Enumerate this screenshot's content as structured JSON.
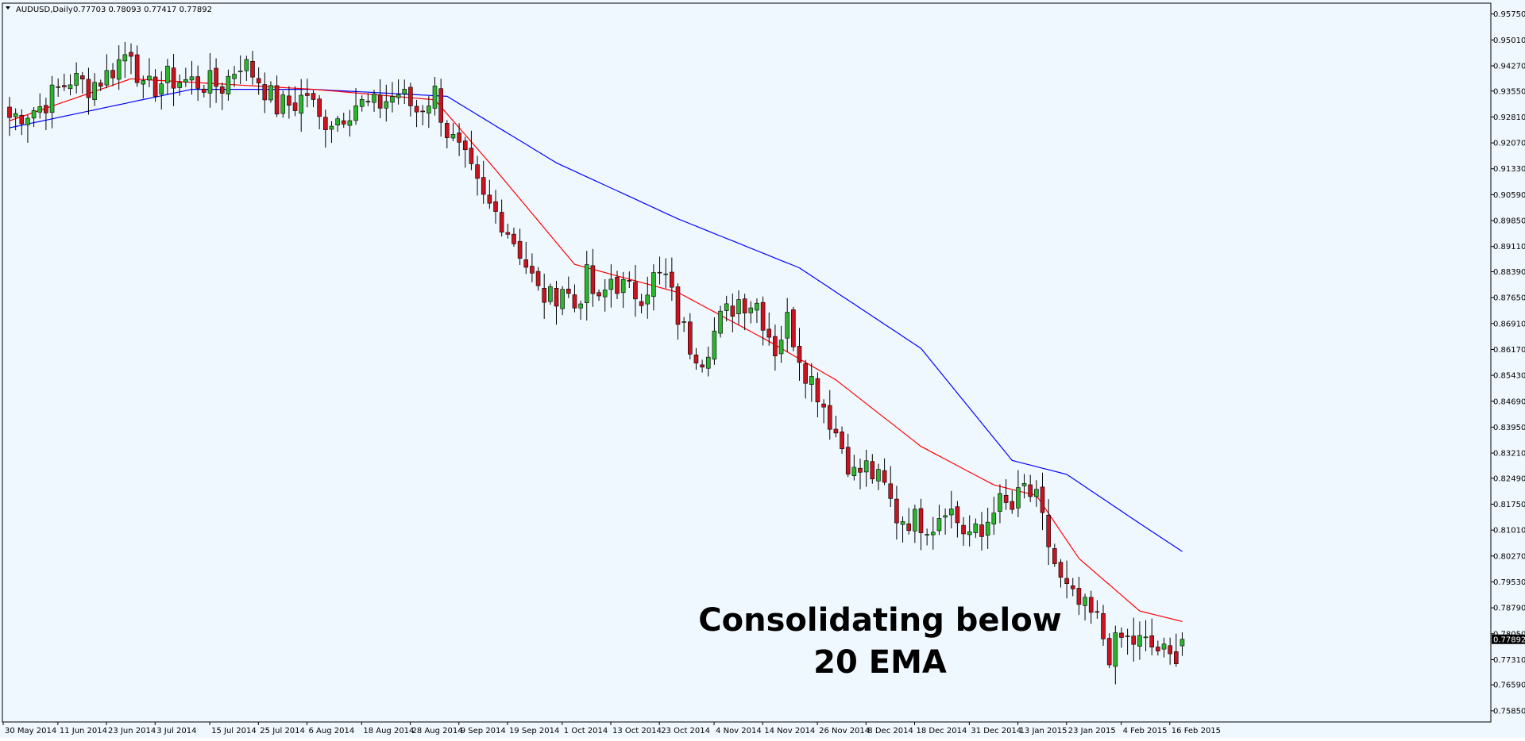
{
  "header": {
    "symbol": "AUDUSD,Daily",
    "ohlc": "0.77703 0.78093 0.77417 0.77892"
  },
  "colors": {
    "background": "#f0f8ff",
    "axis": "#000000",
    "bull_body": "#2db42d",
    "bear_body": "#c8141e",
    "wick": "#000000",
    "ema20": "#ff0000",
    "ema50": "#0000ff",
    "price_tag_bg": "#000000",
    "price_tag_text": "#ffffff"
  },
  "annotation": {
    "line1": "Consolidating below",
    "line2": "20 EMA"
  },
  "chart_data": {
    "type": "candlestick",
    "symbol": "AUDUSD",
    "timeframe": "Daily",
    "ylim": [
      0.7553,
      0.9606
    ],
    "y_ticks": [
      "0.95750",
      "0.95010",
      "0.94270",
      "0.93550",
      "0.92810",
      "0.92070",
      "0.91330",
      "0.90590",
      "0.89850",
      "0.89110",
      "0.88390",
      "0.87650",
      "0.86910",
      "0.86170",
      "0.85430",
      "0.84690",
      "0.83950",
      "0.83210",
      "0.82490",
      "0.81750",
      "0.81010",
      "0.80270",
      "0.79530",
      "0.78790",
      "0.78050",
      "0.77310",
      "0.76590",
      "0.75850"
    ],
    "x_ticks": [
      "30 May 2014",
      "11 Jun 2014",
      "23 Jun 2014",
      "3 Jul 2014",
      "15 Jul 2014",
      "25 Jul 2014",
      "6 Aug 2014",
      "18 Aug 2014",
      "28 Aug 2014",
      "9 Sep 2014",
      "19 Sep 2014",
      "1 Oct 2014",
      "13 Oct 2014",
      "23 Oct 2014",
      "4 Nov 2014",
      "14 Nov 2014",
      "26 Nov 2014",
      "8 Dec 2014",
      "18 Dec 2014",
      "31 Dec 2014",
      "13 Jan 2015",
      "23 Jan 2015",
      "4 Feb 2015",
      "16 Feb 2015"
    ],
    "x_tick_index": [
      0,
      9,
      17,
      25,
      34,
      42,
      50,
      59,
      67,
      75,
      83,
      92,
      100,
      108,
      117,
      125,
      134,
      142,
      150,
      159,
      167,
      175,
      184,
      192
    ],
    "last_price": "0.77892",
    "anchors": [
      [
        0,
        0.928
      ],
      [
        5,
        0.931
      ],
      [
        10,
        0.939
      ],
      [
        13,
        0.937
      ],
      [
        16,
        0.94
      ],
      [
        18,
        0.944
      ],
      [
        20,
        0.948
      ],
      [
        22,
        0.935
      ],
      [
        26,
        0.939
      ],
      [
        31,
        0.938
      ],
      [
        35,
        0.937
      ],
      [
        38,
        0.944
      ],
      [
        41,
        0.939
      ],
      [
        44,
        0.931
      ],
      [
        47,
        0.932
      ],
      [
        49,
        0.935
      ],
      [
        51,
        0.927
      ],
      [
        54,
        0.928
      ],
      [
        57,
        0.932
      ],
      [
        60,
        0.931
      ],
      [
        64,
        0.935
      ],
      [
        67,
        0.93
      ],
      [
        70,
        0.935
      ],
      [
        72,
        0.924
      ],
      [
        75,
        0.915
      ],
      [
        78,
        0.904
      ],
      [
        81,
        0.899
      ],
      [
        84,
        0.89
      ],
      [
        87,
        0.878
      ],
      [
        89,
        0.876
      ],
      [
        91,
        0.88
      ],
      [
        93,
        0.874
      ],
      [
        95,
        0.882
      ],
      [
        97,
        0.874
      ],
      [
        99,
        0.882
      ],
      [
        102,
        0.878
      ],
      [
        104,
        0.878
      ],
      [
        106,
        0.882
      ],
      [
        108,
        0.882
      ],
      [
        110,
        0.871
      ],
      [
        112,
        0.863
      ],
      [
        114,
        0.86
      ],
      [
        117,
        0.87
      ],
      [
        120,
        0.876
      ],
      [
        123,
        0.875
      ],
      [
        126,
        0.862
      ],
      [
        128,
        0.87
      ],
      [
        131,
        0.856
      ],
      [
        133,
        0.85
      ],
      [
        136,
        0.838
      ],
      [
        139,
        0.826
      ],
      [
        141,
        0.828
      ],
      [
        144,
        0.822
      ],
      [
        146,
        0.814
      ],
      [
        149,
        0.813
      ],
      [
        152,
        0.812
      ],
      [
        154,
        0.818
      ],
      [
        157,
        0.81
      ],
      [
        160,
        0.808
      ],
      [
        162,
        0.818
      ],
      [
        165,
        0.816
      ],
      [
        167,
        0.822
      ],
      [
        169,
        0.818
      ],
      [
        171,
        0.806
      ],
      [
        173,
        0.795
      ],
      [
        175,
        0.79
      ],
      [
        177,
        0.787
      ],
      [
        179,
        0.784
      ],
      [
        181,
        0.775
      ],
      [
        183,
        0.779
      ],
      [
        186,
        0.778
      ],
      [
        189,
        0.776
      ],
      [
        191,
        0.773
      ],
      [
        193,
        0.778
      ]
    ],
    "ema20_anchors": [
      [
        0,
        0.927
      ],
      [
        20,
        0.939
      ],
      [
        50,
        0.936
      ],
      [
        70,
        0.933
      ],
      [
        80,
        0.913
      ],
      [
        93,
        0.886
      ],
      [
        110,
        0.878
      ],
      [
        125,
        0.864
      ],
      [
        136,
        0.853
      ],
      [
        150,
        0.834
      ],
      [
        162,
        0.823
      ],
      [
        169,
        0.82
      ],
      [
        176,
        0.802
      ],
      [
        186,
        0.787
      ],
      [
        193,
        0.784
      ]
    ],
    "ema50_anchors": [
      [
        0,
        0.925
      ],
      [
        30,
        0.936
      ],
      [
        50,
        0.936
      ],
      [
        72,
        0.934
      ],
      [
        90,
        0.915
      ],
      [
        110,
        0.899
      ],
      [
        130,
        0.885
      ],
      [
        150,
        0.862
      ],
      [
        165,
        0.83
      ],
      [
        174,
        0.826
      ],
      [
        186,
        0.812
      ],
      [
        193,
        0.804
      ]
    ]
  }
}
